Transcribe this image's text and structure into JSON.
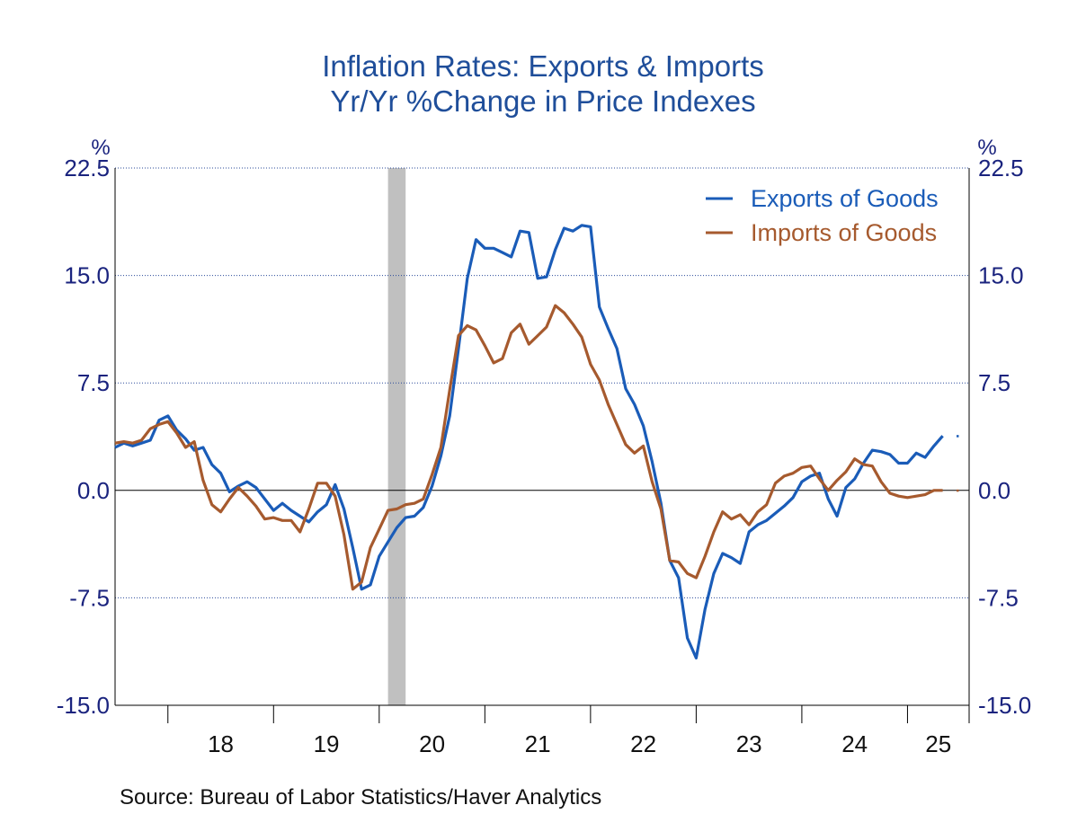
{
  "chart_data": {
    "type": "line",
    "title": "Inflation Rates: Exports & Imports",
    "subtitle": "Yr/Yr %Change in Price Indexes",
    "ylabel_left": "%",
    "ylabel_right": "%",
    "ylim": [
      -15.0,
      22.5
    ],
    "yticks": [
      "22.5",
      "15.0",
      "7.5",
      "0.0",
      "-7.5",
      "-15.0"
    ],
    "xlim": [
      "2017-07",
      "2025-08"
    ],
    "xtick_labels": [
      "18",
      "19",
      "20",
      "21",
      "22",
      "23",
      "24",
      "25"
    ],
    "recession_shading": [
      {
        "start": "2020-02",
        "end": "2020-04"
      }
    ],
    "grid": "horizontal dotted",
    "legend_position": "top-right",
    "source": "Source:  Bureau of Labor Statistics/Haver Analytics",
    "colors": {
      "exports": "#1a5cb8",
      "imports": "#a65a2e",
      "recession": "#c0c0c0",
      "axis_text": "#1a237e"
    },
    "start_month": "2017-07",
    "series": [
      {
        "name": "Exports of Goods",
        "color": "#1a5cb8",
        "values": [
          3.0,
          3.3,
          3.1,
          3.3,
          3.5,
          4.9,
          5.2,
          4.2,
          3.6,
          2.8,
          3.0,
          1.8,
          1.2,
          -0.1,
          0.3,
          0.6,
          0.2,
          -0.6,
          -1.4,
          -0.9,
          -1.4,
          -1.8,
          -2.2,
          -1.5,
          -1.0,
          0.4,
          -1.3,
          -4.0,
          -6.9,
          -6.6,
          -4.6,
          -3.6,
          -2.6,
          -1.9,
          -1.8,
          -1.2,
          0.3,
          2.4,
          5.2,
          9.9,
          14.8,
          17.5,
          16.9,
          16.9,
          16.6,
          16.3,
          18.1,
          18.0,
          14.8,
          14.9,
          16.8,
          18.3,
          18.1,
          18.5,
          18.4,
          12.8,
          11.3,
          9.9,
          7.1,
          6.0,
          4.5,
          2.0,
          -0.9,
          -4.9,
          -6.1,
          -10.3,
          -11.7,
          -8.3,
          -5.8,
          -4.4,
          -4.7,
          -5.1,
          -2.9,
          -2.4,
          -2.1,
          -1.6,
          -1.1,
          -0.5,
          0.6,
          1.0,
          1.2,
          -0.6,
          -1.8,
          0.2,
          0.8,
          1.9,
          2.8,
          2.7,
          2.5,
          1.9,
          1.9,
          2.6,
          2.3,
          3.1,
          3.8
        ]
      },
      {
        "name": "Imports of Goods",
        "color": "#a65a2e",
        "values": [
          3.3,
          3.4,
          3.3,
          3.5,
          4.3,
          4.6,
          4.8,
          4.0,
          3.0,
          3.4,
          0.7,
          -1.0,
          -1.5,
          -0.6,
          0.2,
          -0.4,
          -1.1,
          -2.0,
          -1.9,
          -2.1,
          -2.1,
          -2.9,
          -1.3,
          0.5,
          0.5,
          -0.4,
          -3.1,
          -6.9,
          -6.4,
          -4.0,
          -2.7,
          -1.4,
          -1.3,
          -1.0,
          -0.9,
          -0.6,
          1.1,
          3.0,
          7.0,
          10.8,
          11.5,
          11.2,
          10.1,
          8.9,
          9.2,
          11.0,
          11.6,
          10.2,
          10.8,
          11.4,
          12.9,
          12.4,
          11.6,
          10.7,
          8.8,
          7.7,
          6.0,
          4.6,
          3.2,
          2.6,
          3.1,
          0.6,
          -1.3,
          -4.9,
          -5.0,
          -5.8,
          -6.1,
          -4.6,
          -2.9,
          -1.5,
          -2.0,
          -1.7,
          -2.4,
          -1.5,
          -1.0,
          0.5,
          1.0,
          1.2,
          1.6,
          1.7,
          0.8,
          0.0,
          0.7,
          1.3,
          2.2,
          1.8,
          1.7,
          0.6,
          -0.2,
          -0.4,
          -0.5,
          -0.4,
          -0.3,
          0.0,
          0.0
        ]
      }
    ]
  }
}
